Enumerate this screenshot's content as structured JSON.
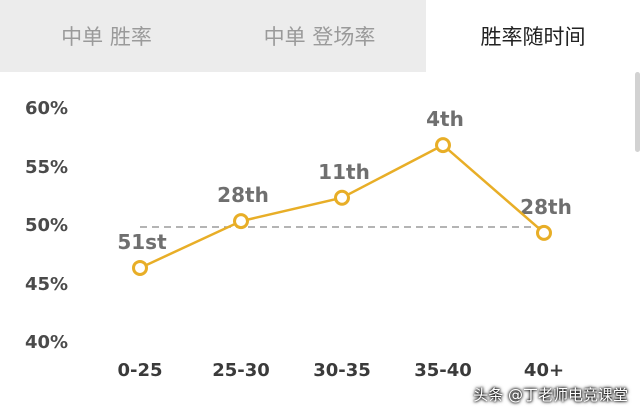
{
  "tabs": [
    {
      "label": "中单 胜率"
    },
    {
      "label": "中单 登场率"
    },
    {
      "label": "胜率随时间"
    }
  ],
  "colors": {
    "line": "#e8ae27",
    "marker_fill": "#ffffff",
    "reference_line": "#9b9b9b"
  },
  "chart_data": {
    "type": "line",
    "categories": [
      "0-25",
      "25-30",
      "30-35",
      "35-40",
      "40+"
    ],
    "values": [
      46.5,
      50.5,
      52.5,
      57.0,
      49.5
    ],
    "ranks": [
      "51st",
      "28th",
      "11th",
      "4th",
      "28th"
    ],
    "ylim": [
      40,
      60
    ],
    "yticks": [
      "60%",
      "55%",
      "50%",
      "45%",
      "40%"
    ],
    "reference_line": 50,
    "grid": false,
    "legend": "none"
  },
  "watermark": "头条 @丁老师电竞课堂"
}
